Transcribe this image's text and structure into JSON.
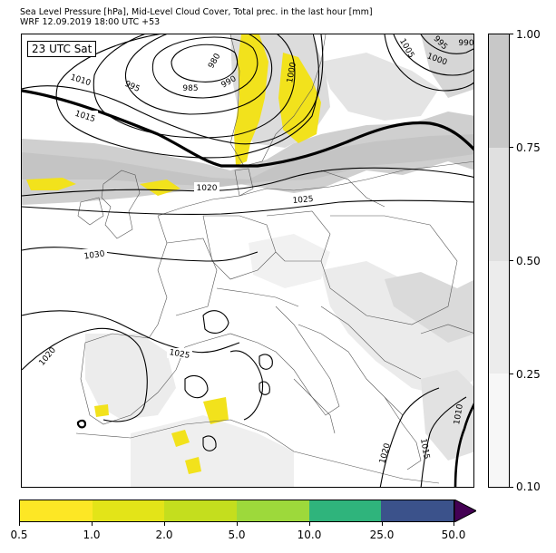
{
  "header": {
    "title_line1": "Sea Level Pressure [hPa], Mid-Level Cloud Cover, Total prec. in the last hour [mm]",
    "title_line2": "WRF 12.09.2019 18:00 UTC +53"
  },
  "map": {
    "time_badge": "23 UTC Sat",
    "isobar_labels": [
      {
        "text": "1010",
        "id": "label-1010-west"
      },
      {
        "text": "1015",
        "id": "label-1015-west"
      },
      {
        "text": "995",
        "id": "label-995"
      },
      {
        "text": "985",
        "id": "label-985"
      },
      {
        "text": "980",
        "id": "label-980"
      },
      {
        "text": "990",
        "id": "label-990"
      },
      {
        "text": "1000",
        "id": "label-1000"
      },
      {
        "text": "1005",
        "id": "label-1005-north"
      },
      {
        "text": "995",
        "id": "label-995-ne"
      },
      {
        "text": "990",
        "id": "label-990-ne"
      },
      {
        "text": "1000",
        "id": "label-1000-ne"
      },
      {
        "text": "1020",
        "id": "label-1020-center"
      },
      {
        "text": "1025",
        "id": "label-1025-center"
      },
      {
        "text": "1030",
        "id": "label-1030"
      },
      {
        "text": "1025",
        "id": "label-1025-iberia"
      },
      {
        "text": "1020",
        "id": "label-1020-sw"
      },
      {
        "text": "1020",
        "id": "label-1020-se"
      },
      {
        "text": "1015",
        "id": "label-1015-se"
      },
      {
        "text": "1010",
        "id": "label-1010-east"
      }
    ],
    "colors": {
      "isobar": "#000000",
      "cloud_light": "#e8e8e8",
      "cloud_mid": "#d2d2d2",
      "cloud_dark": "#c6c6c6",
      "precip": "#f2e21c",
      "coast": "#555555"
    }
  },
  "cloud_colorbar": {
    "colors": [
      "#c8c8c8",
      "#e0e0e0",
      "#ececec",
      "#f7f7f7"
    ],
    "tick_labels": [
      "1.00",
      "0.75",
      "0.50",
      "0.25",
      "0.10"
    ]
  },
  "precip_colorbar": {
    "colors": [
      "#fde725",
      "#e3e418",
      "#c4de1e",
      "#9dd93b",
      "#2fb47c",
      "#3b528b"
    ],
    "extend_color": "#440154",
    "tick_labels": [
      "0.5",
      "1.0",
      "2.0",
      "5.0",
      "10.0",
      "25.0",
      "50.0"
    ]
  }
}
